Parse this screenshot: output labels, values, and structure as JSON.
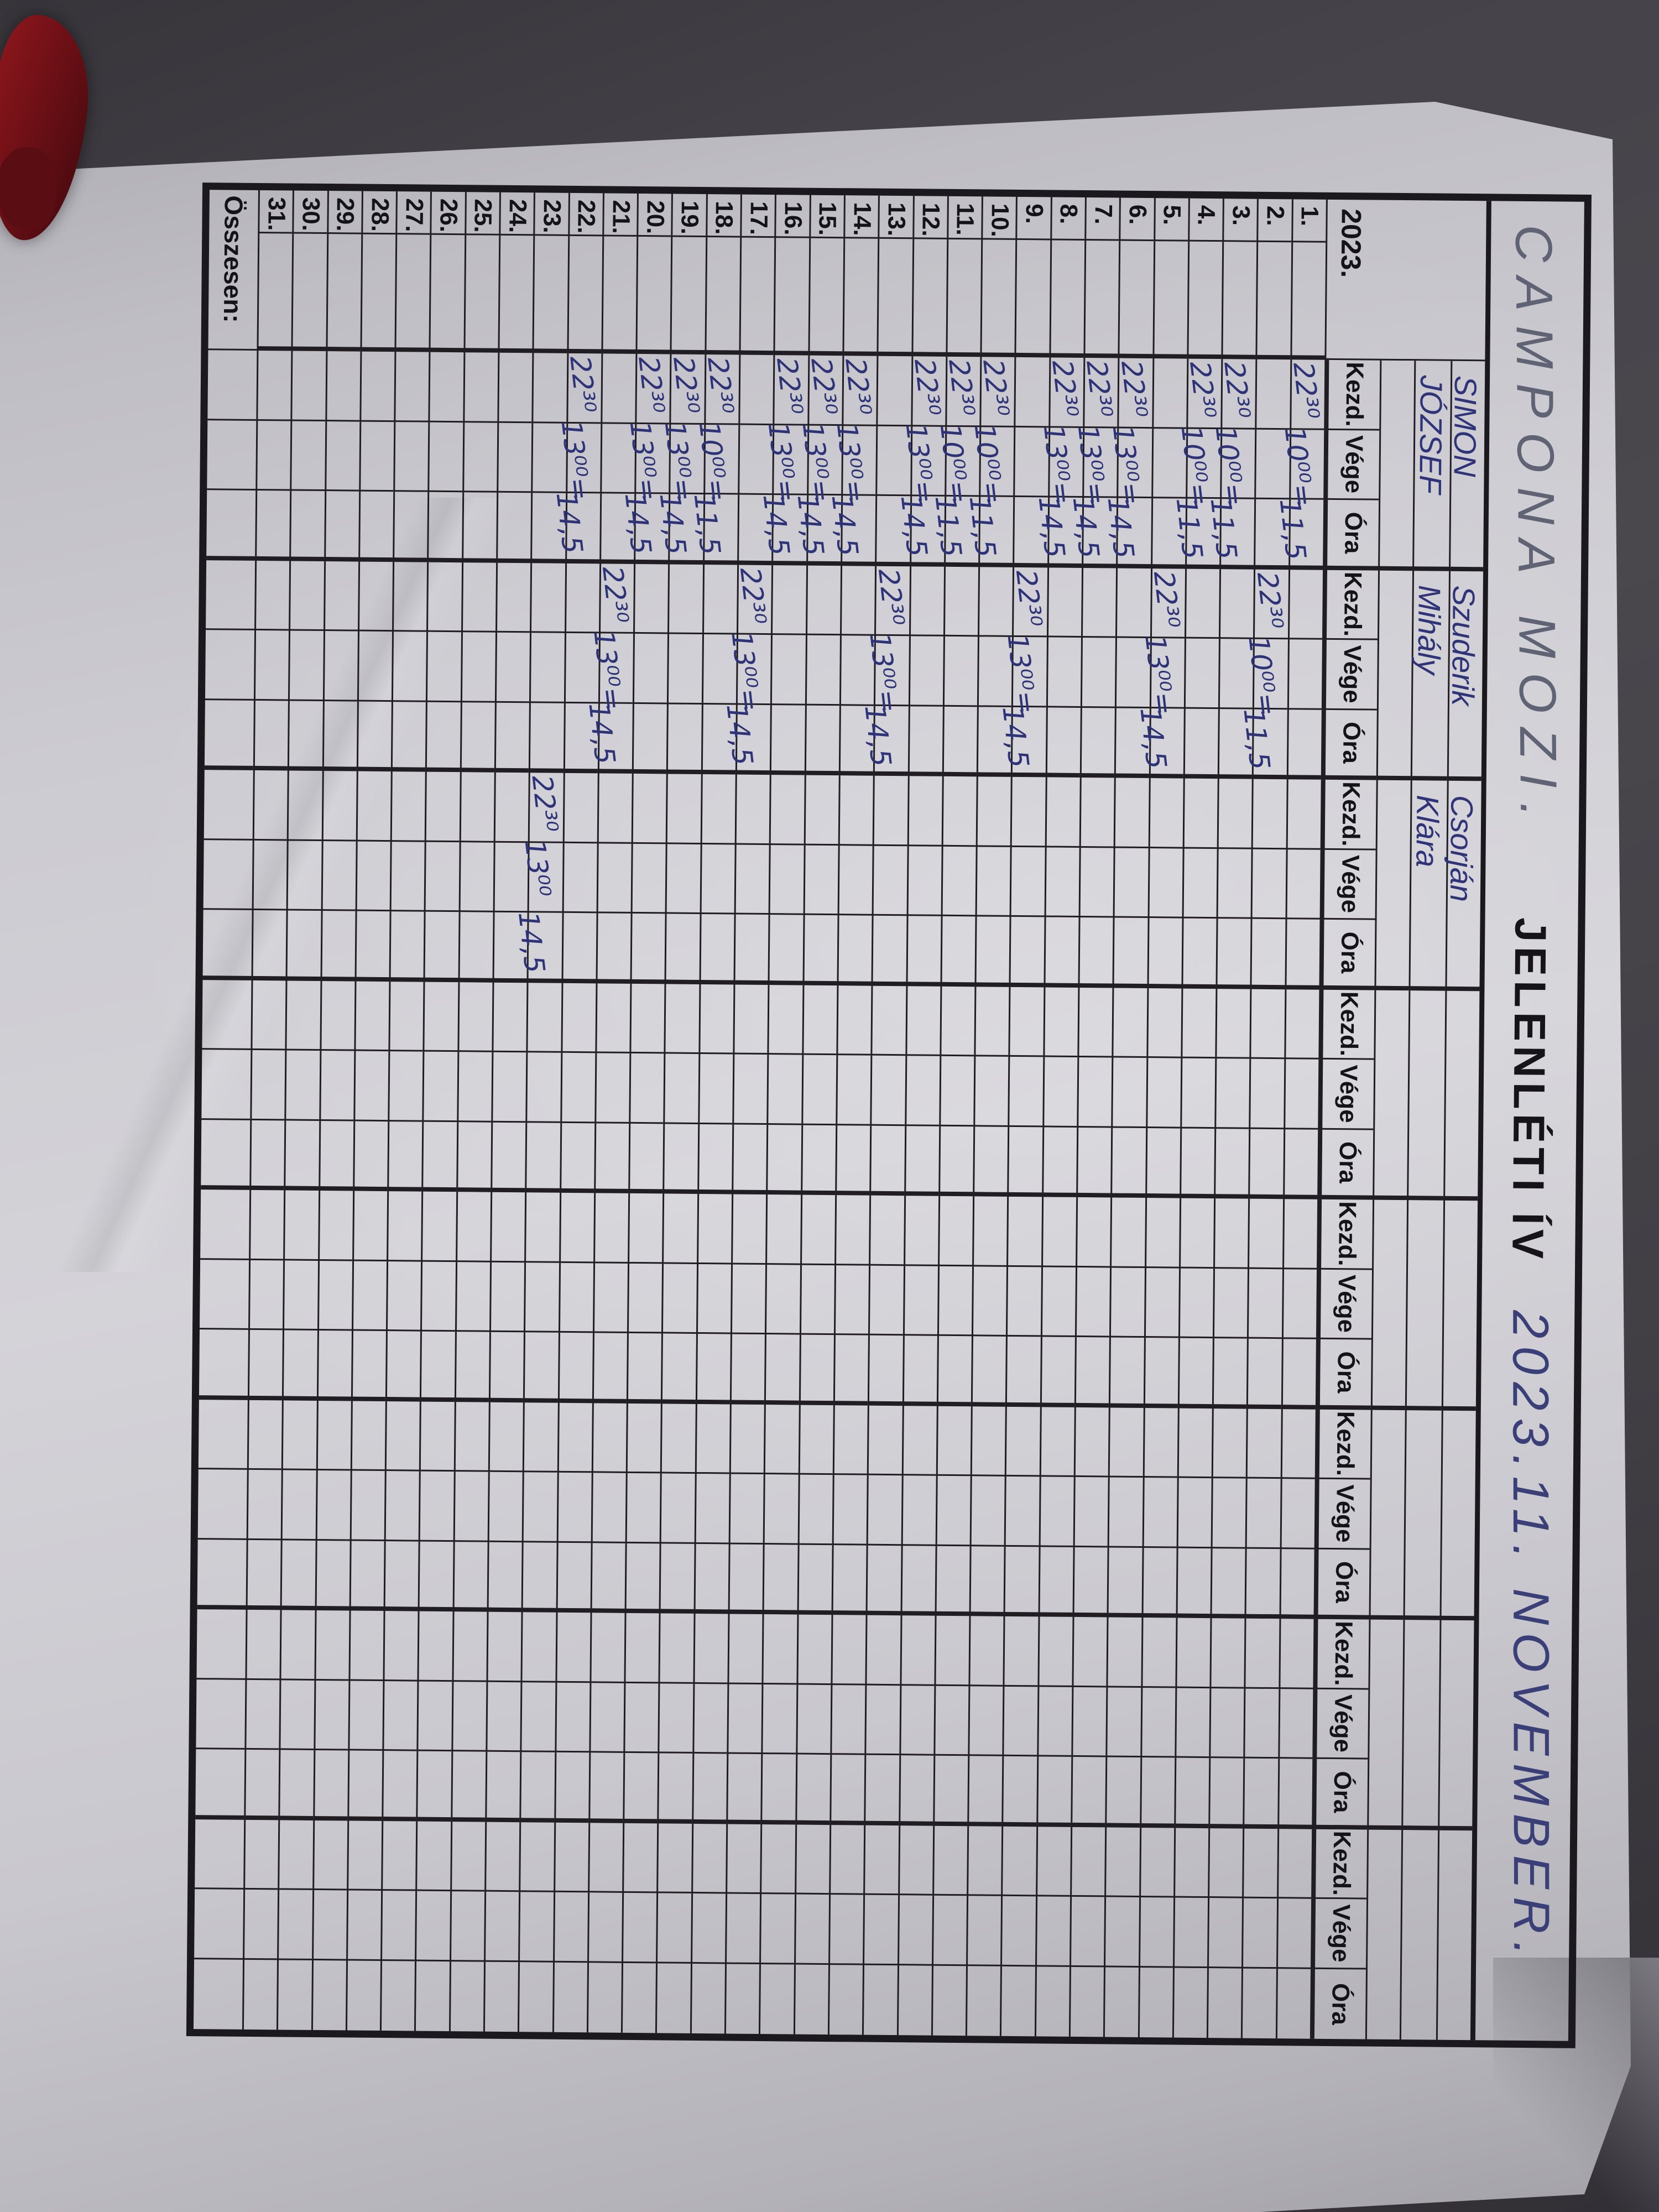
{
  "photo": {
    "background_color": "#454349",
    "paper_color": "#cccbd1",
    "grid_line_color": "#1b191d",
    "pen_blue": "#2e3277",
    "pencil_gray_blue": "#5f6374",
    "red_object_color": "#6d1016"
  },
  "title": {
    "handwritten_left": "CAMPONA MOZI.",
    "printed": "JELENLÉTI ÍV",
    "handwritten_right": "2023.11. NOVEMBER."
  },
  "header": {
    "year_label": "2023.",
    "column_labels": [
      "Kezd.",
      "Vége",
      "Óra"
    ],
    "group_count": 8
  },
  "employees": [
    {
      "line1": "SIMON",
      "line2": "JÓZSEF"
    },
    {
      "line1": "Szuderik",
      "line2": "Mihály"
    },
    {
      "line1": "Csorján",
      "line2": "Klára"
    },
    {
      "line1": "",
      "line2": ""
    },
    {
      "line1": "",
      "line2": ""
    },
    {
      "line1": "",
      "line2": ""
    },
    {
      "line1": "",
      "line2": ""
    },
    {
      "line1": "",
      "line2": ""
    }
  ],
  "days": [
    "1.",
    "2.",
    "3.",
    "4.",
    "5.",
    "6.",
    "7.",
    "8.",
    "9.",
    "10.",
    "11.",
    "12.",
    "13.",
    "14.",
    "15.",
    "16.",
    "17.",
    "18.",
    "19.",
    "20.",
    "21.",
    "22.",
    "23.",
    "24.",
    "25.",
    "26.",
    "27.",
    "28.",
    "29.",
    "30.",
    "31."
  ],
  "total_label": "Összesen:",
  "entries": [
    {
      "g": 1,
      "d": 1,
      "k": "22³⁰",
      "v": "10⁰⁰=",
      "o": "11,5"
    },
    {
      "g": 1,
      "d": 3,
      "k": "22³⁰",
      "v": "10⁰⁰=",
      "o": "11,5"
    },
    {
      "g": 1,
      "d": 4,
      "k": "22³⁰",
      "v": "10⁰⁰=",
      "o": "11,5"
    },
    {
      "g": 1,
      "d": 6,
      "k": "22³⁰",
      "v": "13⁰⁰=",
      "o": "14,5"
    },
    {
      "g": 1,
      "d": 7,
      "k": "22³⁰",
      "v": "13⁰⁰=",
      "o": "14,5"
    },
    {
      "g": 1,
      "d": 8,
      "k": "22³⁰",
      "v": "13⁰⁰=",
      "o": "14,5"
    },
    {
      "g": 1,
      "d": 10,
      "k": "22³⁰",
      "v": "10⁰⁰=",
      "o": "11,5"
    },
    {
      "g": 1,
      "d": 11,
      "k": "22³⁰",
      "v": "10⁰⁰=",
      "o": "11,5"
    },
    {
      "g": 1,
      "d": 12,
      "k": "22³⁰",
      "v": "13⁰⁰=",
      "o": "14,5"
    },
    {
      "g": 1,
      "d": 14,
      "k": "22³⁰",
      "v": "13⁰⁰=",
      "o": "14,5"
    },
    {
      "g": 1,
      "d": 15,
      "k": "22³⁰",
      "v": "13⁰⁰=",
      "o": "14,5"
    },
    {
      "g": 1,
      "d": 16,
      "k": "22³⁰",
      "v": "13⁰⁰=",
      "o": "14,5"
    },
    {
      "g": 1,
      "d": 18,
      "k": "22³⁰",
      "v": "10⁰⁰=",
      "o": "11,5"
    },
    {
      "g": 1,
      "d": 19,
      "k": "22³⁰",
      "v": "13⁰⁰=",
      "o": "14,5"
    },
    {
      "g": 1,
      "d": 20,
      "k": "22³⁰",
      "v": "13⁰⁰=",
      "o": "14,5"
    },
    {
      "g": 1,
      "d": 22,
      "k": "22³⁰",
      "v": "13⁰⁰=",
      "o": "14,5"
    },
    {
      "g": 2,
      "d": 2,
      "k": "22³⁰",
      "v": "10⁰⁰=",
      "o": "11,5"
    },
    {
      "g": 2,
      "d": 5,
      "k": "22³⁰",
      "v": "13⁰⁰=",
      "o": "14,5"
    },
    {
      "g": 2,
      "d": 9,
      "k": "22³⁰",
      "v": "13⁰⁰=",
      "o": "14,5"
    },
    {
      "g": 2,
      "d": 13,
      "k": "22³⁰",
      "v": "13⁰⁰=",
      "o": "14,5"
    },
    {
      "g": 2,
      "d": 17,
      "k": "22³⁰",
      "v": "13⁰⁰=",
      "o": "14,5"
    },
    {
      "g": 2,
      "d": 21,
      "k": "22³⁰",
      "v": "13⁰⁰=",
      "o": "14,5"
    },
    {
      "g": 3,
      "d": 23,
      "k": "22³⁰",
      "v": "13⁰⁰",
      "o": "14,5"
    }
  ]
}
